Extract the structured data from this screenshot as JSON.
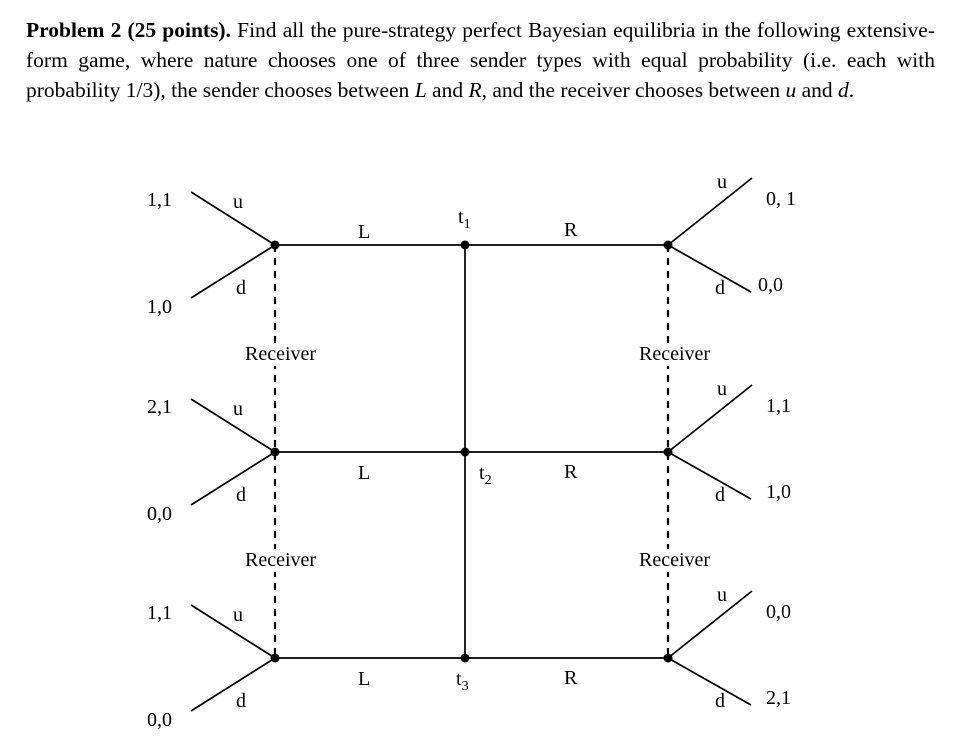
{
  "page": {
    "background": "#ffffff",
    "text_color": "#000000",
    "line_color": "#000000"
  },
  "document": {
    "segments": [
      {
        "text": "Problem 2 (25 points).",
        "style": "bold"
      },
      {
        "text": " Find all the pure-strategy perfect Bayesian equilibria in the following extensive-form game, where nature chooses one of three sender types with equal probability (i.e. each with probability 1/3), the sender chooses between ",
        "style": "normal"
      },
      {
        "text": "L",
        "style": "italic"
      },
      {
        "text": " and ",
        "style": "normal"
      },
      {
        "text": "R",
        "style": "italic"
      },
      {
        "text": ", and the receiver chooses between ",
        "style": "normal"
      },
      {
        "text": "u",
        "style": "italic"
      },
      {
        "text": " and ",
        "style": "normal"
      },
      {
        "text": "d",
        "style": "italic"
      },
      {
        "text": ".",
        "style": "normal"
      }
    ]
  },
  "game": {
    "rows": [
      {
        "type": {
          "base": "t",
          "sub": "1"
        },
        "left_action": "L",
        "right_action": "R",
        "left_node": {
          "up_action": "u",
          "down_action": "d",
          "up_payoff": "1,1",
          "down_payoff": "1,0"
        },
        "right_node": {
          "up_action": "u",
          "down_action": "d",
          "up_payoff": "0, 1",
          "down_payoff": "0,0"
        }
      },
      {
        "type": {
          "base": "t",
          "sub": "2"
        },
        "left_action": "L",
        "right_action": "R",
        "left_node": {
          "up_action": "u",
          "down_action": "d",
          "up_payoff": "2,1",
          "down_payoff": "0,0"
        },
        "right_node": {
          "up_action": "u",
          "down_action": "d",
          "up_payoff": "1,1",
          "down_payoff": "1,0"
        }
      },
      {
        "type": {
          "base": "t",
          "sub": "3"
        },
        "left_action": "L",
        "right_action": "R",
        "left_node": {
          "up_action": "u",
          "down_action": "d",
          "up_payoff": "1,1",
          "down_payoff": "0,0"
        },
        "right_node": {
          "up_action": "u",
          "down_action": "d",
          "up_payoff": "0,0",
          "down_payoff": "2,1"
        }
      }
    ],
    "info_set_labels": {
      "left_top": "Receiver",
      "right_top": "Receiver",
      "left_bottom": "Receiver",
      "right_bottom": "Receiver"
    }
  }
}
